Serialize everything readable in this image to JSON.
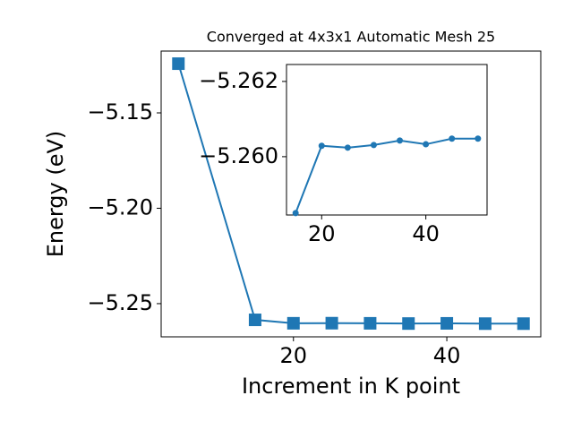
{
  "chart_data": [
    {
      "type": "line",
      "title": "Converged at 4x3x1 Automatic Mesh 25",
      "x_label": "Increment in K point",
      "y_label": "Energy (eV)",
      "marker": "square",
      "x": [
        5,
        15,
        20,
        25,
        30,
        35,
        40,
        45,
        50
      ],
      "series": [
        {
          "color": "#1f77b4",
          "values": [
            -5.1242,
            -5.2585,
            -5.26029,
            -5.26024,
            -5.26031,
            -5.26043,
            -5.26033,
            -5.26048,
            -5.26048
          ]
        }
      ],
      "xlim": [
        2.75,
        52.25
      ],
      "xticks": [
        20,
        40
      ],
      "ylim": [
        -5.2674,
        -5.1176
      ],
      "yticks": [
        {
          "value": -5.15,
          "label": "−5.15"
        },
        {
          "value": -5.2,
          "label": "−5.20"
        },
        {
          "value": -5.25,
          "label": "−5.25"
        }
      ]
    },
    {
      "type": "line",
      "marker": "circle",
      "x": [
        15,
        20,
        25,
        30,
        35,
        40,
        45,
        50
      ],
      "series": [
        {
          "color": "#1f77b4",
          "values": [
            -5.2585,
            -5.26029,
            -5.26024,
            -5.26031,
            -5.26043,
            -5.26033,
            -5.26048,
            -5.26048
          ]
        }
      ],
      "xlim": [
        13.25,
        51.75
      ],
      "xticks": [
        20,
        40
      ],
      "ylim": [
        -5.25845,
        -5.26245
      ],
      "yticks": [
        {
          "value": -5.262,
          "label": "−5.262"
        },
        {
          "value": -5.26,
          "label": "−5.260"
        }
      ]
    }
  ]
}
